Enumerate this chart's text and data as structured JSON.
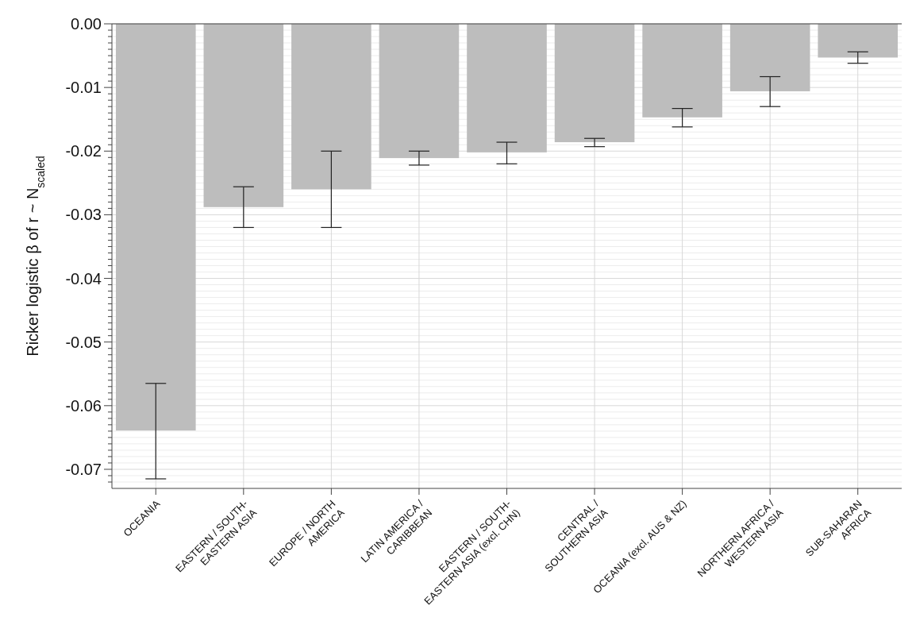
{
  "chart_data": {
    "type": "bar",
    "ylabel": "Ricker logistic β of r ~ N$_{scaled}$",
    "categories": [
      "OCEANIA",
      "EASTERN / SOUTH-\nEASTERN ASIA",
      "EUROPE / NORTH\nAMERICA",
      "LATIN AMERICA /\nCARIBBEAN",
      "EASTERN / SOUTH-\nEASTERN ASIA (excl. CHN)",
      "CENTRAL /\nSOUTHERN ASIA",
      "OCEANIA (excl. AUS & NZ)",
      "NORTHERN AFRICA /\nWESTERN ASIA",
      "SUB-SAHARAN\nAFRICA"
    ],
    "values": [
      -0.0639,
      -0.0288,
      -0.026,
      -0.0211,
      -0.0202,
      -0.0186,
      -0.0147,
      -0.0106,
      -0.0053
    ],
    "errors": [
      [
        -0.0715,
        -0.0565
      ],
      [
        -0.032,
        -0.0256
      ],
      [
        -0.032,
        -0.02
      ],
      [
        -0.0222,
        -0.02
      ],
      [
        -0.022,
        -0.0186
      ],
      [
        -0.0193,
        -0.018
      ],
      [
        -0.0162,
        -0.0133
      ],
      [
        -0.013,
        -0.0083
      ],
      [
        -0.0062,
        -0.0044
      ]
    ],
    "color": "#bdbdbd",
    "ylim": [
      -0.073,
      0
    ],
    "yticks": [
      {
        "value": 0,
        "label": "0.00"
      },
      {
        "value": -0.01,
        "label": "-0.01"
      },
      {
        "value": -0.02,
        "label": "-0.02"
      },
      {
        "value": -0.03,
        "label": "-0.03"
      },
      {
        "value": -0.04,
        "label": "-0.04"
      },
      {
        "value": -0.05,
        "label": "-0.05"
      },
      {
        "value": -0.06,
        "label": "-0.06"
      },
      {
        "value": -0.07,
        "label": "-0.07"
      },
      {
        "value": -0.001,
        "label": null
      },
      {
        "value": -0.002,
        "label": null
      },
      {
        "value": -0.003,
        "label": null
      },
      {
        "value": -0.004,
        "label": null
      },
      {
        "value": -0.005,
        "label": null
      },
      {
        "value": -0.006,
        "label": null
      },
      {
        "value": -0.007,
        "label": null
      },
      {
        "value": -0.008,
        "label": null
      },
      {
        "value": -0.009,
        "label": null
      },
      {
        "value": -0.011,
        "label": null
      },
      {
        "value": -0.012,
        "label": null
      },
      {
        "value": -0.013,
        "label": null
      },
      {
        "value": -0.014,
        "label": null
      },
      {
        "value": -0.015,
        "label": null
      },
      {
        "value": -0.016,
        "label": null
      },
      {
        "value": -0.017,
        "label": null
      },
      {
        "value": -0.018,
        "label": null
      },
      {
        "value": -0.019,
        "label": null
      },
      {
        "value": -0.021,
        "label": null
      },
      {
        "value": -0.022,
        "label": null
      },
      {
        "value": -0.023,
        "label": null
      },
      {
        "value": -0.024,
        "label": null
      },
      {
        "value": -0.025,
        "label": null
      },
      {
        "value": -0.026,
        "label": null
      },
      {
        "value": -0.027,
        "label": null
      },
      {
        "value": -0.028,
        "label": null
      },
      {
        "value": -0.029,
        "label": null
      },
      {
        "value": -0.031,
        "label": null
      },
      {
        "value": -0.032,
        "label": null
      },
      {
        "value": -0.033,
        "label": null
      },
      {
        "value": -0.034,
        "label": null
      },
      {
        "value": -0.035,
        "label": null
      },
      {
        "value": -0.036,
        "label": null
      },
      {
        "value": -0.037,
        "label": null
      },
      {
        "value": -0.038,
        "label": null
      },
      {
        "value": -0.039,
        "label": null
      },
      {
        "value": -0.041,
        "label": null
      },
      {
        "value": -0.042,
        "label": null
      },
      {
        "value": -0.043,
        "label": null
      },
      {
        "value": -0.044,
        "label": null
      },
      {
        "value": -0.045,
        "label": null
      },
      {
        "value": -0.046,
        "label": null
      },
      {
        "value": -0.047,
        "label": null
      },
      {
        "value": -0.048,
        "label": null
      },
      {
        "value": -0.049,
        "label": null
      },
      {
        "value": -0.051,
        "label": null
      },
      {
        "value": -0.052,
        "label": null
      },
      {
        "value": -0.053,
        "label": null
      },
      {
        "value": -0.054,
        "label": null
      },
      {
        "value": -0.055,
        "label": null
      },
      {
        "value": -0.056,
        "label": null
      },
      {
        "value": -0.057,
        "label": null
      },
      {
        "value": -0.058,
        "label": null
      },
      {
        "value": -0.059,
        "label": null
      },
      {
        "value": -0.061,
        "label": null
      },
      {
        "value": -0.062,
        "label": null
      },
      {
        "value": -0.063,
        "label": null
      },
      {
        "value": -0.064,
        "label": null
      },
      {
        "value": -0.065,
        "label": null
      },
      {
        "value": -0.066,
        "label": null
      },
      {
        "value": -0.067,
        "label": null
      },
      {
        "value": -0.068,
        "label": null
      },
      {
        "value": -0.069,
        "label": null
      },
      {
        "value": -0.071,
        "label": null
      },
      {
        "value": -0.072,
        "label": null
      }
    ],
    "grid": true
  }
}
